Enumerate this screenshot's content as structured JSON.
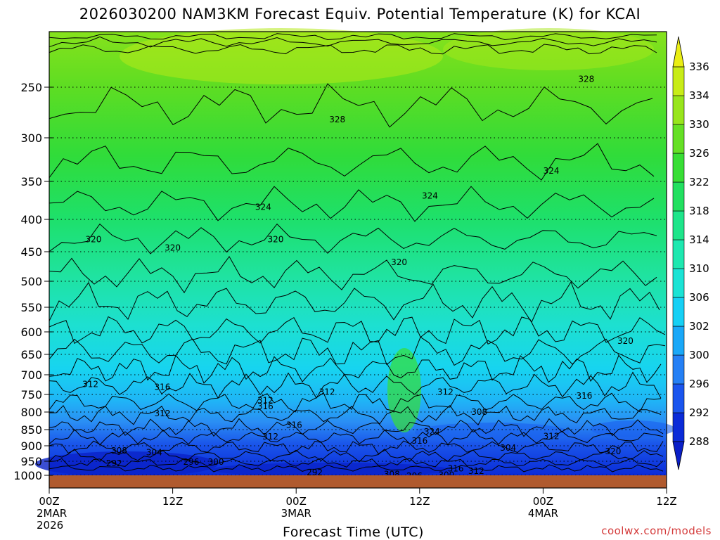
{
  "page": {
    "title": "2026030200 NAM3KM Forecast Equiv. Potential Temperature (K) for KCAI",
    "credit": "coolwx.com/models"
  },
  "chart_data": {
    "type": "heatmap",
    "title": "2026030200 NAM3KM Forecast Equiv. Potential Temperature (K) for KCAI",
    "xlabel": "Forecast Time (UTC)",
    "ylabel": "",
    "y_axis_ticks": [
      250,
      300,
      350,
      400,
      450,
      500,
      550,
      600,
      650,
      700,
      750,
      800,
      850,
      900,
      950,
      1000
    ],
    "y_range": [
      200,
      1025
    ],
    "x_axis_ticks": [
      {
        "hour": 0,
        "line1": "00Z",
        "line2": "2MAR",
        "line3": "2026"
      },
      {
        "hour": 12,
        "line1": "12Z",
        "line2": "",
        "line3": ""
      },
      {
        "hour": 24,
        "line1": "00Z",
        "line2": "3MAR",
        "line3": ""
      },
      {
        "hour": 36,
        "line1": "12Z",
        "line2": "",
        "line3": ""
      },
      {
        "hour": 48,
        "line1": "00Z",
        "line2": "4MAR",
        "line3": ""
      },
      {
        "hour": 60,
        "line1": "12Z",
        "line2": "",
        "line3": ""
      }
    ],
    "x_range_hours": [
      0,
      60
    ],
    "colorbar": {
      "levels": [
        288,
        292,
        296,
        300,
        302,
        306,
        310,
        314,
        318,
        322,
        326,
        330,
        334,
        336
      ],
      "colors": [
        "#0a2bd8",
        "#1a55ee",
        "#2580f5",
        "#1aa8f8",
        "#16d0f5",
        "#1be3d5",
        "#1ee8b0",
        "#1ee58a",
        "#22e060",
        "#38de35",
        "#65e025",
        "#98e51c",
        "#c8ec18"
      ],
      "extend_low_color": "#0a1fc8",
      "extend_high_color": "#eaee14"
    },
    "contour_labels": [
      {
        "hour": 52.2,
        "pressure": 242,
        "text": "328"
      },
      {
        "hour": 28.0,
        "pressure": 282,
        "text": "328"
      },
      {
        "hour": 48.8,
        "pressure": 338,
        "text": "324"
      },
      {
        "hour": 37.0,
        "pressure": 369,
        "text": "324"
      },
      {
        "hour": 20.8,
        "pressure": 384,
        "text": "324"
      },
      {
        "hour": 4.3,
        "pressure": 431,
        "text": "320"
      },
      {
        "hour": 12.0,
        "pressure": 444,
        "text": "320"
      },
      {
        "hour": 22.0,
        "pressure": 431,
        "text": "320"
      },
      {
        "hour": 34.0,
        "pressure": 468,
        "text": "320"
      },
      {
        "hour": 56.0,
        "pressure": 620,
        "text": "320"
      },
      {
        "hour": 4.0,
        "pressure": 724,
        "text": "312"
      },
      {
        "hour": 11.0,
        "pressure": 731,
        "text": "316"
      },
      {
        "hour": 27.0,
        "pressure": 744,
        "text": "312"
      },
      {
        "hour": 38.5,
        "pressure": 744,
        "text": "312"
      },
      {
        "hour": 52.0,
        "pressure": 754,
        "text": "316"
      },
      {
        "hour": 21.0,
        "pressure": 767,
        "text": "312"
      },
      {
        "hour": 21.0,
        "pressure": 784,
        "text": "316"
      },
      {
        "hour": 11.0,
        "pressure": 804,
        "text": "312"
      },
      {
        "hour": 41.8,
        "pressure": 800,
        "text": "308"
      },
      {
        "hour": 23.8,
        "pressure": 837,
        "text": "316"
      },
      {
        "hour": 37.2,
        "pressure": 856,
        "text": "324"
      },
      {
        "hour": 21.5,
        "pressure": 872,
        "text": "312"
      },
      {
        "hour": 48.8,
        "pressure": 871,
        "text": "312"
      },
      {
        "hour": 36.0,
        "pressure": 885,
        "text": "316"
      },
      {
        "hour": 44.6,
        "pressure": 907,
        "text": "304"
      },
      {
        "hour": 6.8,
        "pressure": 916,
        "text": "308"
      },
      {
        "hour": 10.2,
        "pressure": 922,
        "text": "304"
      },
      {
        "hour": 54.8,
        "pressure": 918,
        "text": "320"
      },
      {
        "hour": 13.8,
        "pressure": 952,
        "text": "296"
      },
      {
        "hour": 16.2,
        "pressure": 952,
        "text": "300"
      },
      {
        "hour": 6.3,
        "pressure": 958,
        "text": "292"
      },
      {
        "hour": 39.5,
        "pressure": 976,
        "text": "316"
      },
      {
        "hour": 41.5,
        "pressure": 985,
        "text": "312"
      },
      {
        "hour": 25.8,
        "pressure": 990,
        "text": "292"
      },
      {
        "hour": 33.3,
        "pressure": 996,
        "text": "308"
      },
      {
        "hour": 35.5,
        "pressure": 1003,
        "text": "296"
      },
      {
        "hour": 38.6,
        "pressure": 999,
        "text": "300"
      }
    ]
  }
}
